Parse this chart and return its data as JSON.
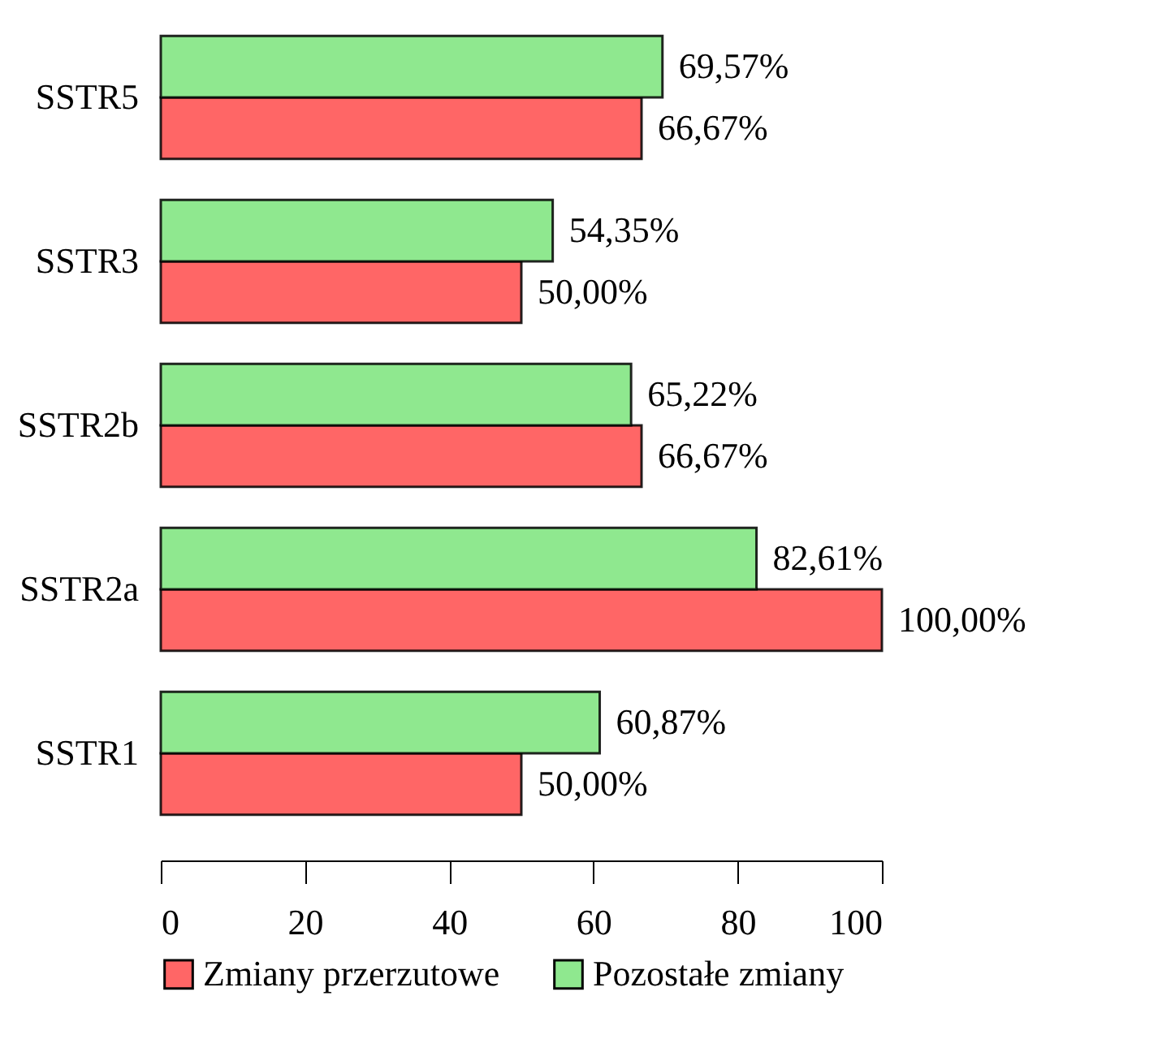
{
  "chart_data": {
    "type": "bar",
    "orientation": "horizontal",
    "categories": [
      "SSTR5",
      "SSTR3",
      "SSTR2b",
      "SSTR2a",
      "SSTR1"
    ],
    "series": [
      {
        "name": "Zmiany przerzutowe",
        "color": "#ff6666",
        "values": [
          66.67,
          50.0,
          66.67,
          100.0,
          50.0
        ],
        "value_labels": [
          "66,67%",
          "50,00%",
          "66,67%",
          "100,00%",
          "50,00%"
        ]
      },
      {
        "name": "Pozostałe zmiany",
        "color": "#8fe88f",
        "values": [
          69.57,
          54.35,
          65.22,
          82.61,
          60.87
        ],
        "value_labels": [
          "69,57%",
          "54,35%",
          "65,22%",
          "82,61%",
          "60,87%"
        ]
      }
    ],
    "xlim": [
      0,
      100
    ],
    "xticks": [
      0,
      20,
      40,
      60,
      80,
      100
    ],
    "grid": false,
    "legend": "bottom"
  }
}
